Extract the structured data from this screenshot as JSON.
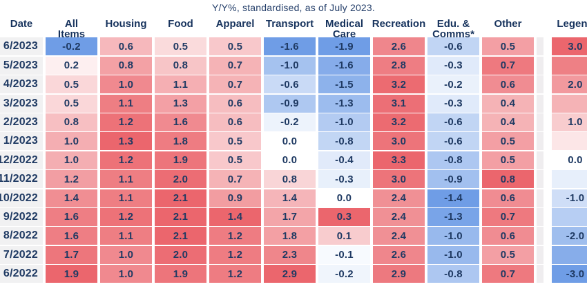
{
  "title": "Y/Y%, standardised, as of July 2023.",
  "colors": {
    "text": "#1f3a63",
    "header_text": "#17335d",
    "positive_extreme": "#eb666d",
    "negative_extreme": "#6f9de6",
    "zero": "#ffffff",
    "date_bg": "#f1f1f2",
    "separator_bg": "#efedef"
  },
  "table": {
    "columns": [
      {
        "key": "date",
        "label": "Date"
      },
      {
        "key": "all-items",
        "label": "All\nItems"
      },
      {
        "key": "housing",
        "label": "Housing"
      },
      {
        "key": "food",
        "label": "Food"
      },
      {
        "key": "apparel",
        "label": "Apparel"
      },
      {
        "key": "transport",
        "label": "Transport"
      },
      {
        "key": "medical-care",
        "label": "Medical\nCare"
      },
      {
        "key": "recreation",
        "label": "Recreation"
      },
      {
        "key": "edu-comms",
        "label": "Edu. &\nComms*"
      },
      {
        "key": "other",
        "label": "Other"
      },
      {
        "key": "legend",
        "label": "Legend"
      }
    ],
    "rows": [
      {
        "date": "6/2023",
        "values": [
          -0.2,
          0.6,
          0.5,
          0.5,
          -1.6,
          -1.9,
          2.6,
          -0.6,
          0.5
        ]
      },
      {
        "date": "5/2023",
        "values": [
          0.2,
          0.8,
          0.8,
          0.7,
          -1.0,
          -1.6,
          2.8,
          -0.3,
          0.7
        ]
      },
      {
        "date": "4/2023",
        "values": [
          0.5,
          1.0,
          1.1,
          0.7,
          -0.6,
          -1.5,
          3.2,
          -0.2,
          0.6
        ]
      },
      {
        "date": "3/2023",
        "values": [
          0.5,
          1.1,
          1.3,
          0.6,
          -0.9,
          -1.3,
          3.1,
          -0.3,
          0.4
        ]
      },
      {
        "date": "2/2023",
        "values": [
          0.8,
          1.2,
          1.6,
          0.6,
          -0.2,
          -1.0,
          3.2,
          -0.6,
          0.4
        ]
      },
      {
        "date": "1/2023",
        "values": [
          1.0,
          1.3,
          1.8,
          0.5,
          0.0,
          -0.8,
          3.0,
          -0.6,
          0.5
        ]
      },
      {
        "date": "12/2022",
        "values": [
          1.0,
          1.2,
          1.9,
          0.5,
          0.0,
          -0.4,
          3.3,
          -0.8,
          0.5
        ]
      },
      {
        "date": "11/2022",
        "values": [
          1.2,
          1.1,
          2.0,
          0.7,
          0.8,
          -0.3,
          3.0,
          -0.9,
          0.8
        ]
      },
      {
        "date": "10/2022",
        "values": [
          1.4,
          1.1,
          2.1,
          0.9,
          1.4,
          0.0,
          2.4,
          -1.4,
          0.6
        ]
      },
      {
        "date": "9/2022",
        "values": [
          1.6,
          1.2,
          2.1,
          1.4,
          1.7,
          0.3,
          2.4,
          -1.3,
          0.7
        ]
      },
      {
        "date": "8/2022",
        "values": [
          1.6,
          1.1,
          2.1,
          1.2,
          1.8,
          0.1,
          2.4,
          -1.0,
          0.6
        ]
      },
      {
        "date": "7/2022",
        "values": [
          1.7,
          1.0,
          2.0,
          1.2,
          2.3,
          -0.1,
          2.6,
          -1.0,
          0.5
        ]
      },
      {
        "date": "6/2022",
        "values": [
          1.9,
          1.0,
          1.9,
          1.2,
          2.9,
          -0.2,
          2.9,
          -0.8,
          0.7
        ]
      }
    ],
    "legend": {
      "values": [
        3.0,
        2.5,
        2.0,
        1.5,
        1.0,
        0.5,
        0.0,
        -0.5,
        -1.0,
        -1.5,
        -2.0,
        -2.5,
        -3.0
      ],
      "labels": [
        "3.0",
        "",
        "2.0",
        "",
        "1.0",
        "",
        "0.0",
        "",
        "-1.0",
        "",
        "-2.0",
        "",
        "-3.0"
      ],
      "max_abs": 3.0
    }
  },
  "chart_data": {
    "type": "heatmap",
    "title": "Y/Y%, standardised, as of July 2023.",
    "rows": [
      "6/2023",
      "5/2023",
      "4/2023",
      "3/2023",
      "2/2023",
      "1/2023",
      "12/2022",
      "11/2022",
      "10/2022",
      "9/2022",
      "8/2022",
      "7/2022",
      "6/2022"
    ],
    "columns": [
      "All Items",
      "Housing",
      "Food",
      "Apparel",
      "Transport",
      "Medical Care",
      "Recreation",
      "Edu. & Comms*",
      "Other"
    ],
    "values": [
      [
        -0.2,
        0.6,
        0.5,
        0.5,
        -1.6,
        -1.9,
        2.6,
        -0.6,
        0.5
      ],
      [
        0.2,
        0.8,
        0.8,
        0.7,
        -1.0,
        -1.6,
        2.8,
        -0.3,
        0.7
      ],
      [
        0.5,
        1.0,
        1.1,
        0.7,
        -0.6,
        -1.5,
        3.2,
        -0.2,
        0.6
      ],
      [
        0.5,
        1.1,
        1.3,
        0.6,
        -0.9,
        -1.3,
        3.1,
        -0.3,
        0.4
      ],
      [
        0.8,
        1.2,
        1.6,
        0.6,
        -0.2,
        -1.0,
        3.2,
        -0.6,
        0.4
      ],
      [
        1.0,
        1.3,
        1.8,
        0.5,
        0.0,
        -0.8,
        3.0,
        -0.6,
        0.5
      ],
      [
        1.0,
        1.2,
        1.9,
        0.5,
        0.0,
        -0.4,
        3.3,
        -0.8,
        0.5
      ],
      [
        1.2,
        1.1,
        2.0,
        0.7,
        0.8,
        -0.3,
        3.0,
        -0.9,
        0.8
      ],
      [
        1.4,
        1.1,
        2.1,
        0.9,
        1.4,
        0.0,
        2.4,
        -1.4,
        0.6
      ],
      [
        1.6,
        1.2,
        2.1,
        1.4,
        1.7,
        0.3,
        2.4,
        -1.3,
        0.7
      ],
      [
        1.6,
        1.1,
        2.1,
        1.2,
        1.8,
        0.1,
        2.4,
        -1.0,
        0.6
      ],
      [
        1.7,
        1.0,
        2.0,
        1.2,
        2.3,
        -0.1,
        2.6,
        -1.0,
        0.5
      ],
      [
        1.9,
        1.0,
        1.9,
        1.2,
        2.9,
        -0.2,
        2.9,
        -0.8,
        0.7
      ]
    ],
    "legend": {
      "label": "Legend",
      "min": -3.0,
      "max": 3.0,
      "step": 0.5,
      "labeled_ticks": [
        3.0,
        2.0,
        1.0,
        0.0,
        -1.0,
        -2.0,
        -3.0
      ]
    },
    "colorscale": {
      "negative": "#6f9de6",
      "zero": "#ffffff",
      "positive": "#eb666d"
    },
    "normalization": "per-column: intensity = value / max positive (red) or |value| / max |negative| (blue)"
  }
}
